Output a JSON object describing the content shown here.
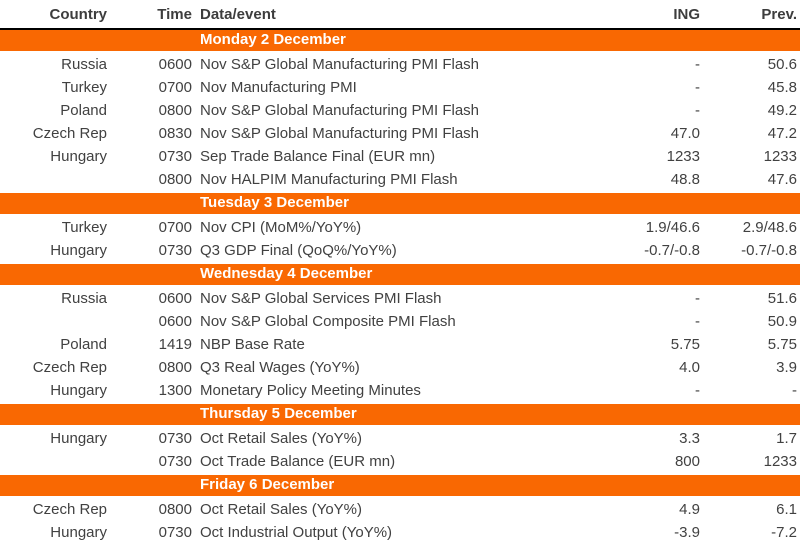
{
  "table": {
    "accent_color": "#f96802",
    "text_color": "#414141",
    "columns": {
      "country": "Country",
      "time": "Time",
      "event": "Data/event",
      "ing": "ING",
      "prev": "Prev."
    },
    "sections": [
      {
        "day": "Monday 2 December",
        "rows": [
          {
            "country": "Russia",
            "time": "0600",
            "event": "Nov S&P Global Manufacturing PMI Flash",
            "ing": "-",
            "prev": "50.6"
          },
          {
            "country": "Turkey",
            "time": "0700",
            "event": "Nov Manufacturing PMI",
            "ing": "-",
            "prev": "45.8"
          },
          {
            "country": "Poland",
            "time": "0800",
            "event": "Nov S&P Global Manufacturing PMI Flash",
            "ing": "-",
            "prev": "49.2"
          },
          {
            "country": "Czech Rep",
            "time": "0830",
            "event": "Nov S&P Global Manufacturing PMI Flash",
            "ing": "47.0",
            "prev": "47.2"
          },
          {
            "country": "Hungary",
            "time": "0730",
            "event": "Sep Trade Balance Final (EUR mn)",
            "ing": "1233",
            "prev": "1233"
          },
          {
            "country": "",
            "time": "0800",
            "event": "Nov HALPIM Manufacturing PMI Flash",
            "ing": "48.8",
            "prev": "47.6"
          }
        ]
      },
      {
        "day": "Tuesday 3 December",
        "rows": [
          {
            "country": "Turkey",
            "time": "0700",
            "event": "Nov CPI (MoM%/YoY%)",
            "ing": "1.9/46.6",
            "prev": "2.9/48.6"
          },
          {
            "country": "Hungary",
            "time": "0730",
            "event": "Q3 GDP Final (QoQ%/YoY%)",
            "ing": "-0.7/-0.8",
            "prev": "-0.7/-0.8"
          }
        ]
      },
      {
        "day": "Wednesday 4 December",
        "rows": [
          {
            "country": "Russia",
            "time": "0600",
            "event": "Nov S&P Global Services PMI Flash",
            "ing": "-",
            "prev": "51.6"
          },
          {
            "country": "",
            "time": "0600",
            "event": "Nov S&P Global Composite PMI Flash",
            "ing": "-",
            "prev": "50.9"
          },
          {
            "country": "Poland",
            "time": "1419",
            "event": "NBP Base Rate",
            "ing": "5.75",
            "prev": "5.75"
          },
          {
            "country": "Czech Rep",
            "time": "0800",
            "event": "Q3 Real Wages (YoY%)",
            "ing": "4.0",
            "prev": "3.9"
          },
          {
            "country": "Hungary",
            "time": "1300",
            "event": "Monetary Policy Meeting Minutes",
            "ing": "-",
            "prev": "-"
          }
        ]
      },
      {
        "day": "Thursday 5 December",
        "rows": [
          {
            "country": "Hungary",
            "time": "0730",
            "event": "Oct Retail Sales (YoY%)",
            "ing": "3.3",
            "prev": "1.7"
          },
          {
            "country": "",
            "time": "0730",
            "event": "Oct Trade Balance (EUR mn)",
            "ing": "800",
            "prev": "1233"
          }
        ]
      },
      {
        "day": "Friday 6 December",
        "rows": [
          {
            "country": "Czech Rep",
            "time": "0800",
            "event": "Oct Retail Sales (YoY%)",
            "ing": "4.9",
            "prev": "6.1"
          },
          {
            "country": "Hungary",
            "time": "0730",
            "event": "Oct Industrial Output (YoY%)",
            "ing": "-3.9",
            "prev": "-7.2"
          }
        ]
      }
    ]
  }
}
